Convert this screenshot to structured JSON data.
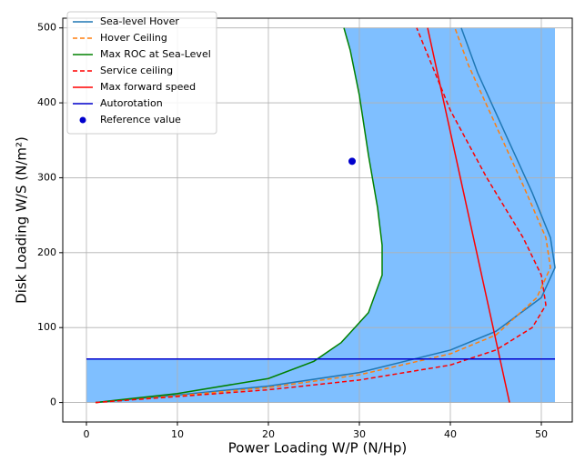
{
  "chart_data": {
    "type": "line",
    "xlabel": "Power Loading W/P (N/Hp)",
    "ylabel": "Disk Loading W/S (N/m²)",
    "xlim": [
      -2.6,
      53.4
    ],
    "ylim": [
      -26,
      513
    ],
    "xticks": [
      0,
      10,
      20,
      30,
      40,
      50
    ],
    "yticks": [
      0,
      100,
      200,
      300,
      400,
      500
    ],
    "grid": true,
    "legend": "upper-left",
    "region_color": "#7fbfff",
    "series": [
      {
        "name": "Sea-level Hover",
        "color": "#1f77b4",
        "dash": false,
        "x": [
          1,
          10,
          20,
          30,
          40,
          45,
          50,
          51.5,
          51,
          49,
          46,
          43,
          41.2
        ],
        "values": [
          0,
          10,
          22,
          40,
          70,
          95,
          140,
          180,
          220,
          280,
          360,
          440,
          500
        ]
      },
      {
        "name": "Hover Ceiling",
        "color": "#ff7f0e",
        "dash": true,
        "x": [
          1,
          10,
          20,
          30,
          40,
          45,
          49.5,
          51,
          50.5,
          48,
          45,
          42,
          40.5
        ],
        "values": [
          0,
          9,
          20,
          37,
          65,
          90,
          140,
          180,
          220,
          290,
          370,
          450,
          500
        ]
      },
      {
        "name": "Max ROC at Sea-Level",
        "color": "#008000",
        "dash": false,
        "x": [
          1,
          10,
          20,
          25,
          28,
          31,
          32.5,
          32.5,
          32,
          31,
          30,
          29,
          28.3
        ],
        "values": [
          0,
          12,
          32,
          55,
          80,
          120,
          170,
          210,
          260,
          330,
          410,
          470,
          500
        ]
      },
      {
        "name": "Service ceiling",
        "color": "#ff0000",
        "dash": true,
        "x": [
          1,
          10,
          20,
          30,
          40,
          45,
          49,
          50.5,
          50,
          48,
          44,
          40,
          36.3
        ],
        "values": [
          0,
          8,
          17,
          30,
          50,
          70,
          100,
          130,
          170,
          220,
          300,
          390,
          500
        ]
      },
      {
        "name": "Max forward speed",
        "color": "#ff0000",
        "dash": false,
        "x": [
          37.5,
          46.5
        ],
        "values": [
          500,
          0
        ]
      },
      {
        "name": "Autorotation",
        "color": "#0000cd",
        "dash": false,
        "x": [
          0,
          51.5
        ],
        "values": [
          58,
          58
        ]
      },
      {
        "name": "Reference value",
        "color": "#0000cd",
        "marker": true,
        "x": [
          29.2
        ],
        "values": [
          322
        ]
      }
    ]
  }
}
